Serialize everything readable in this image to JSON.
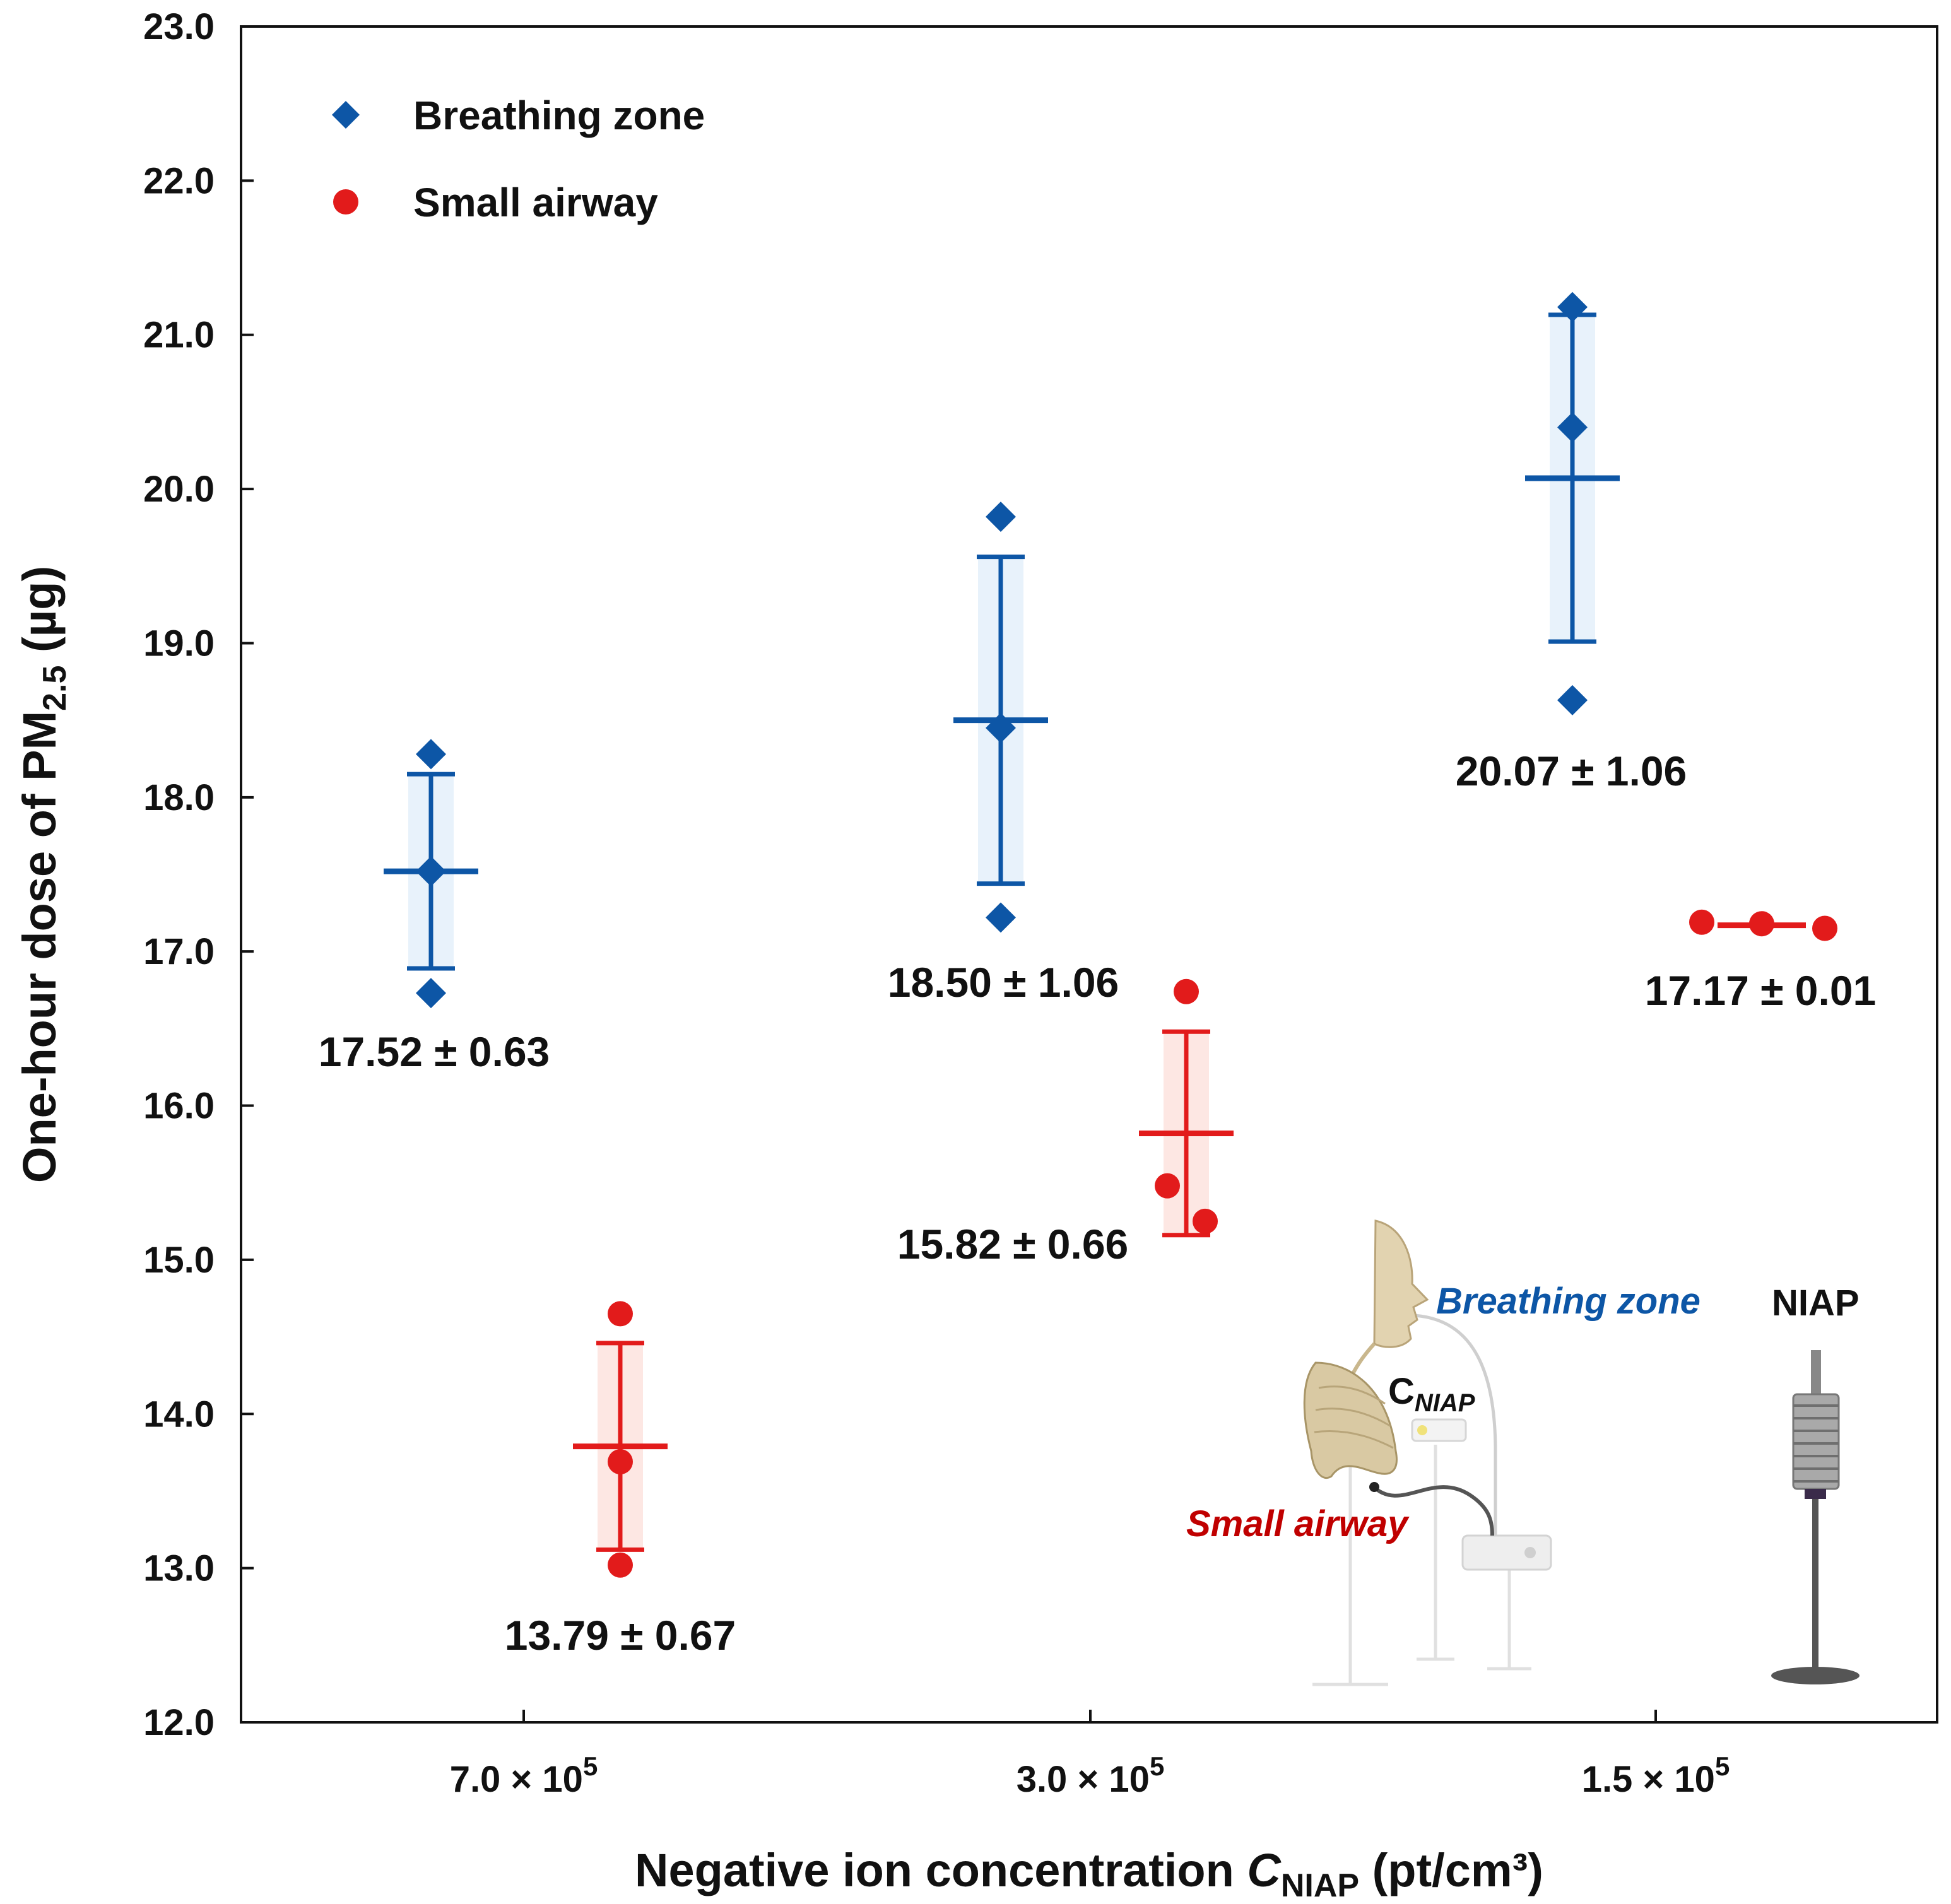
{
  "chart_data": {
    "type": "scatter",
    "title": "",
    "ylabel_main": "One-hour dose of PM",
    "ylabel_sub": "2.5",
    "ylabel_unit": " (µg)",
    "xlabel_prefix": "Negative ion concentration ",
    "xlabel_symbol": "C",
    "xlabel_symbol_sub": "NIAP",
    "xlabel_unit": " (pt/cm³)",
    "ylim": [
      12.0,
      23.0
    ],
    "yticks": [
      "12.0",
      "13.0",
      "14.0",
      "15.0",
      "16.0",
      "17.0",
      "18.0",
      "19.0",
      "20.0",
      "21.0",
      "22.0",
      "23.0"
    ],
    "categories": [
      {
        "base": "7.0 × 10",
        "exp": "5"
      },
      {
        "base": "3.0 × 10",
        "exp": "5"
      },
      {
        "base": "1.5 × 10",
        "exp": "5"
      }
    ],
    "legend": {
      "position": "top-left"
    },
    "series": [
      {
        "name": "Breathing zone",
        "marker": "diamond",
        "color": "#0d56a6",
        "band_color": "#e8f2fb",
        "groups": [
          {
            "category": 0,
            "points": [
              18.28,
              17.52,
              16.73
            ],
            "mean": 17.52,
            "sd": 0.63,
            "label": "17.52 ± 0.63"
          },
          {
            "category": 1,
            "points": [
              19.82,
              18.45,
              17.22
            ],
            "mean": 18.5,
            "sd": 1.06,
            "label": "18.50 ± 1.06"
          },
          {
            "category": 2,
            "points": [
              21.18,
              20.4,
              18.63
            ],
            "mean": 20.07,
            "sd": 1.06,
            "label": "20.07 ± 1.06"
          }
        ]
      },
      {
        "name": "Small airway",
        "marker": "circle",
        "color": "#e21b1b",
        "band_color": "#fde7e3",
        "groups": [
          {
            "category": 0,
            "points": [
              14.65,
              13.69,
              13.02
            ],
            "mean": 13.79,
            "sd": 0.67,
            "label": "13.79 ± 0.67"
          },
          {
            "category": 1,
            "points": [
              16.74,
              15.48,
              15.25
            ],
            "mean": 15.82,
            "sd": 0.66,
            "label": "15.82 ± 0.66"
          },
          {
            "category": 2,
            "points": [
              17.19,
              17.18,
              17.15
            ],
            "mean": 17.17,
            "sd": 0.01,
            "label": "17.17 ± 0.01"
          }
        ]
      }
    ]
  },
  "inset": {
    "breathing_zone_label": "Breathing zone",
    "small_airway_label": "Small airway",
    "cniap_symbol": "C",
    "cniap_sub": "NIAP",
    "niap_label": "NIAP",
    "breathing_color": "#0d56a6",
    "airway_color": "#c00000"
  }
}
